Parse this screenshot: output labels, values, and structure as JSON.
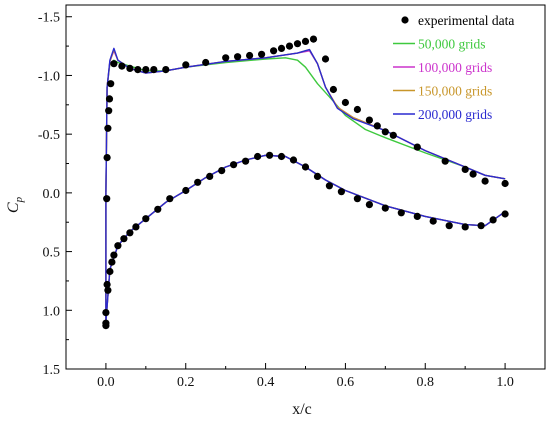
{
  "chart_data": {
    "type": "line",
    "xlabel": "x/c",
    "ylabel_main": "C",
    "ylabel_sub": "p",
    "xlim": [
      -0.1,
      1.1
    ],
    "ylim": [
      1.5,
      -1.6
    ],
    "y_inverted": true,
    "xticks": [
      0.0,
      0.2,
      0.4,
      0.6,
      0.8,
      1.0
    ],
    "xtick_labels": [
      "0.0",
      "0.2",
      "0.4",
      "0.6",
      "0.8",
      "1.0"
    ],
    "yticks": [
      -1.5,
      -1.0,
      -0.5,
      0.0,
      0.5,
      1.0,
      1.5
    ],
    "ytick_labels": [
      "-1.5",
      "-1.0",
      "-0.5",
      "0.0",
      "0.5",
      "1.0",
      "1.5"
    ],
    "grid": false,
    "legend_position": "top-right",
    "experimental": {
      "name": "experimental data",
      "color": "#000000",
      "points": [
        [
          0.0,
          1.13
        ],
        [
          0.0,
          1.11
        ],
        [
          0.0,
          1.02
        ],
        [
          0.005,
          0.83
        ],
        [
          0.003,
          0.78
        ],
        [
          0.01,
          0.67
        ],
        [
          0.015,
          0.59
        ],
        [
          0.02,
          0.53
        ],
        [
          0.03,
          0.45
        ],
        [
          0.045,
          0.39
        ],
        [
          0.06,
          0.34
        ],
        [
          0.075,
          0.29
        ],
        [
          0.1,
          0.22
        ],
        [
          0.13,
          0.14
        ],
        [
          0.16,
          0.05
        ],
        [
          0.2,
          -0.02
        ],
        [
          0.23,
          -0.09
        ],
        [
          0.26,
          -0.14
        ],
        [
          0.29,
          -0.19
        ],
        [
          0.32,
          -0.24
        ],
        [
          0.35,
          -0.27
        ],
        [
          0.38,
          -0.31
        ],
        [
          0.41,
          -0.32
        ],
        [
          0.44,
          -0.31
        ],
        [
          0.47,
          -0.28
        ],
        [
          0.5,
          -0.22
        ],
        [
          0.53,
          -0.14
        ],
        [
          0.56,
          -0.06
        ],
        [
          0.59,
          -0.01
        ],
        [
          0.63,
          0.05
        ],
        [
          0.66,
          0.1
        ],
        [
          0.7,
          0.13
        ],
        [
          0.74,
          0.17
        ],
        [
          0.78,
          0.2
        ],
        [
          0.82,
          0.24
        ],
        [
          0.86,
          0.28
        ],
        [
          0.9,
          0.29
        ],
        [
          0.94,
          0.28
        ],
        [
          0.97,
          0.23
        ],
        [
          1.0,
          0.18
        ],
        [
          0.002,
          0.05
        ],
        [
          0.003,
          -0.3
        ],
        [
          0.005,
          -0.55
        ],
        [
          0.007,
          -0.7
        ],
        [
          0.009,
          -0.8
        ],
        [
          0.012,
          -0.93
        ],
        [
          0.02,
          -1.1
        ],
        [
          0.04,
          -1.08
        ],
        [
          0.06,
          -1.06
        ],
        [
          0.08,
          -1.05
        ],
        [
          0.1,
          -1.05
        ],
        [
          0.12,
          -1.05
        ],
        [
          0.15,
          -1.05
        ],
        [
          0.2,
          -1.09
        ],
        [
          0.25,
          -1.11
        ],
        [
          0.3,
          -1.15
        ],
        [
          0.33,
          -1.16
        ],
        [
          0.36,
          -1.17
        ],
        [
          0.39,
          -1.18
        ],
        [
          0.42,
          -1.21
        ],
        [
          0.44,
          -1.23
        ],
        [
          0.46,
          -1.25
        ],
        [
          0.48,
          -1.27
        ],
        [
          0.5,
          -1.29
        ],
        [
          0.52,
          -1.31
        ],
        [
          0.55,
          -1.14
        ],
        [
          0.57,
          -0.88
        ],
        [
          0.6,
          -0.77
        ],
        [
          0.63,
          -0.71
        ],
        [
          0.66,
          -0.62
        ],
        [
          0.68,
          -0.57
        ],
        [
          0.7,
          -0.52
        ],
        [
          0.72,
          -0.49
        ],
        [
          0.78,
          -0.39
        ],
        [
          0.85,
          -0.27
        ],
        [
          0.9,
          -0.2
        ],
        [
          0.92,
          -0.16
        ],
        [
          0.95,
          -0.1
        ],
        [
          1.0,
          -0.08
        ]
      ]
    },
    "series": [
      {
        "name": "50,000 grids",
        "color": "#3ec93e",
        "upper": [
          [
            0.0,
            0.0
          ],
          [
            0.003,
            -0.9
          ],
          [
            0.01,
            -1.1
          ],
          [
            0.02,
            -1.13
          ],
          [
            0.03,
            -1.11
          ],
          [
            0.06,
            -1.08
          ],
          [
            0.1,
            -1.04
          ],
          [
            0.15,
            -1.04
          ],
          [
            0.2,
            -1.07
          ],
          [
            0.3,
            -1.11
          ],
          [
            0.4,
            -1.14
          ],
          [
            0.45,
            -1.15
          ],
          [
            0.48,
            -1.13
          ],
          [
            0.5,
            -1.07
          ],
          [
            0.53,
            -0.93
          ],
          [
            0.57,
            -0.78
          ],
          [
            0.6,
            -0.66
          ],
          [
            0.65,
            -0.54
          ],
          [
            0.7,
            -0.47
          ],
          [
            0.8,
            -0.34
          ],
          [
            0.9,
            -0.22
          ],
          [
            0.95,
            -0.15
          ],
          [
            1.0,
            -0.12
          ]
        ],
        "lower": [
          [
            0.0,
            0.0
          ],
          [
            0.0,
            1.1
          ],
          [
            0.01,
            0.65
          ],
          [
            0.03,
            0.45
          ],
          [
            0.06,
            0.33
          ],
          [
            0.1,
            0.22
          ],
          [
            0.15,
            0.08
          ],
          [
            0.2,
            -0.02
          ],
          [
            0.25,
            -0.13
          ],
          [
            0.3,
            -0.22
          ],
          [
            0.35,
            -0.28
          ],
          [
            0.4,
            -0.32
          ],
          [
            0.45,
            -0.31
          ],
          [
            0.5,
            -0.22
          ],
          [
            0.55,
            -0.11
          ],
          [
            0.6,
            -0.02
          ],
          [
            0.7,
            0.11
          ],
          [
            0.8,
            0.2
          ],
          [
            0.9,
            0.27
          ],
          [
            0.95,
            0.28
          ],
          [
            1.0,
            0.16
          ]
        ]
      },
      {
        "name": "100,000 grids",
        "color": "#cc33cc",
        "upper": [
          [
            0.0,
            0.0
          ],
          [
            0.003,
            -0.9
          ],
          [
            0.01,
            -1.12
          ],
          [
            0.02,
            -1.21
          ],
          [
            0.03,
            -1.13
          ],
          [
            0.06,
            -1.06
          ],
          [
            0.1,
            -1.02
          ],
          [
            0.15,
            -1.04
          ],
          [
            0.2,
            -1.07
          ],
          [
            0.3,
            -1.12
          ],
          [
            0.4,
            -1.15
          ],
          [
            0.48,
            -1.19
          ],
          [
            0.51,
            -1.21
          ],
          [
            0.53,
            -1.1
          ],
          [
            0.55,
            -0.9
          ],
          [
            0.58,
            -0.73
          ],
          [
            0.62,
            -0.64
          ],
          [
            0.7,
            -0.53
          ],
          [
            0.8,
            -0.36
          ],
          [
            0.9,
            -0.22
          ],
          [
            0.95,
            -0.15
          ],
          [
            1.0,
            -0.12
          ]
        ],
        "lower": [
          [
            0.0,
            0.0
          ],
          [
            0.0,
            1.1
          ],
          [
            0.01,
            0.65
          ],
          [
            0.03,
            0.45
          ],
          [
            0.06,
            0.33
          ],
          [
            0.1,
            0.22
          ],
          [
            0.15,
            0.08
          ],
          [
            0.2,
            -0.02
          ],
          [
            0.25,
            -0.13
          ],
          [
            0.3,
            -0.22
          ],
          [
            0.35,
            -0.28
          ],
          [
            0.4,
            -0.32
          ],
          [
            0.45,
            -0.31
          ],
          [
            0.5,
            -0.22
          ],
          [
            0.55,
            -0.11
          ],
          [
            0.6,
            -0.02
          ],
          [
            0.7,
            0.11
          ],
          [
            0.8,
            0.2
          ],
          [
            0.9,
            0.27
          ],
          [
            0.95,
            0.28
          ],
          [
            1.0,
            0.16
          ]
        ]
      },
      {
        "name": "150,000 grids",
        "color": "#c8962a",
        "upper": [
          [
            0.0,
            0.0
          ],
          [
            0.003,
            -0.9
          ],
          [
            0.01,
            -1.12
          ],
          [
            0.02,
            -1.22
          ],
          [
            0.03,
            -1.13
          ],
          [
            0.06,
            -1.06
          ],
          [
            0.1,
            -1.02
          ],
          [
            0.15,
            -1.04
          ],
          [
            0.2,
            -1.07
          ],
          [
            0.3,
            -1.12
          ],
          [
            0.4,
            -1.15
          ],
          [
            0.48,
            -1.19
          ],
          [
            0.51,
            -1.22
          ],
          [
            0.53,
            -1.1
          ],
          [
            0.55,
            -0.9
          ],
          [
            0.58,
            -0.73
          ],
          [
            0.62,
            -0.64
          ],
          [
            0.7,
            -0.53
          ],
          [
            0.8,
            -0.36
          ],
          [
            0.9,
            -0.22
          ],
          [
            0.95,
            -0.15
          ],
          [
            1.0,
            -0.12
          ]
        ],
        "lower": [
          [
            0.0,
            0.0
          ],
          [
            0.0,
            1.1
          ],
          [
            0.01,
            0.65
          ],
          [
            0.03,
            0.45
          ],
          [
            0.06,
            0.33
          ],
          [
            0.1,
            0.22
          ],
          [
            0.15,
            0.08
          ],
          [
            0.2,
            -0.02
          ],
          [
            0.25,
            -0.13
          ],
          [
            0.3,
            -0.22
          ],
          [
            0.35,
            -0.28
          ],
          [
            0.4,
            -0.32
          ],
          [
            0.45,
            -0.31
          ],
          [
            0.5,
            -0.22
          ],
          [
            0.55,
            -0.11
          ],
          [
            0.6,
            -0.02
          ],
          [
            0.7,
            0.11
          ],
          [
            0.8,
            0.2
          ],
          [
            0.9,
            0.27
          ],
          [
            0.95,
            0.28
          ],
          [
            1.0,
            0.16
          ]
        ]
      },
      {
        "name": "200,000 grids",
        "color": "#2a2ad0",
        "upper": [
          [
            0.0,
            0.0
          ],
          [
            0.003,
            -0.9
          ],
          [
            0.01,
            -1.13
          ],
          [
            0.02,
            -1.23
          ],
          [
            0.03,
            -1.13
          ],
          [
            0.06,
            -1.06
          ],
          [
            0.1,
            -1.02
          ],
          [
            0.15,
            -1.04
          ],
          [
            0.2,
            -1.07
          ],
          [
            0.3,
            -1.12
          ],
          [
            0.4,
            -1.15
          ],
          [
            0.48,
            -1.19
          ],
          [
            0.51,
            -1.22
          ],
          [
            0.53,
            -1.1
          ],
          [
            0.55,
            -0.9
          ],
          [
            0.58,
            -0.72
          ],
          [
            0.62,
            -0.63
          ],
          [
            0.7,
            -0.53
          ],
          [
            0.8,
            -0.36
          ],
          [
            0.9,
            -0.22
          ],
          [
            0.95,
            -0.15
          ],
          [
            1.0,
            -0.12
          ]
        ],
        "lower": [
          [
            0.0,
            0.0
          ],
          [
            0.0,
            1.1
          ],
          [
            0.01,
            0.65
          ],
          [
            0.03,
            0.45
          ],
          [
            0.06,
            0.33
          ],
          [
            0.1,
            0.22
          ],
          [
            0.15,
            0.08
          ],
          [
            0.2,
            -0.02
          ],
          [
            0.25,
            -0.13
          ],
          [
            0.3,
            -0.22
          ],
          [
            0.35,
            -0.28
          ],
          [
            0.4,
            -0.32
          ],
          [
            0.45,
            -0.31
          ],
          [
            0.5,
            -0.22
          ],
          [
            0.55,
            -0.11
          ],
          [
            0.6,
            -0.02
          ],
          [
            0.7,
            0.11
          ],
          [
            0.8,
            0.2
          ],
          [
            0.9,
            0.27
          ],
          [
            0.95,
            0.28
          ],
          [
            1.0,
            0.16
          ]
        ]
      }
    ]
  }
}
